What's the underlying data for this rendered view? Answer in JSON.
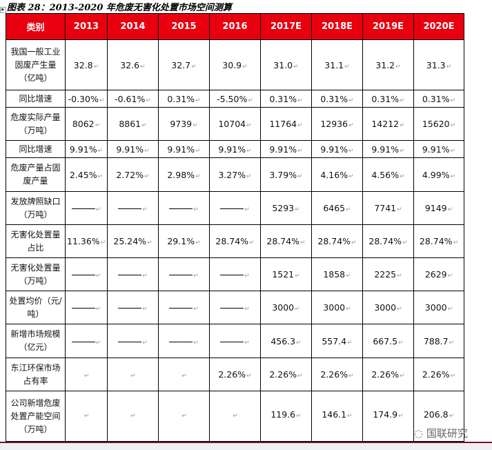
{
  "title": "图表 28：2013-2020 年危废无害化处置市场空间测算",
  "header": [
    "类别",
    "2013",
    "2014",
    "2015",
    "2016",
    "2017E",
    "2018E",
    "2019E",
    "2020E"
  ],
  "rows": [
    {
      "label": "我国一般工业固废产生量（亿吨）",
      "values": [
        "32.8",
        "32.6",
        "32.7",
        "30.9",
        "31.0",
        "31.1",
        "31.2",
        "31.3"
      ]
    },
    {
      "label": "同比增速",
      "values": [
        "-0.30%",
        "-0.61%",
        "0.31%",
        "-5.50%",
        "0.31%",
        "0.31%",
        "0.31%",
        "0.31%"
      ]
    },
    {
      "label": "危废实际产量（万吨）",
      "values": [
        "8062",
        "8861",
        "9739",
        "10704",
        "11764",
        "12936",
        "14212",
        "15620"
      ]
    },
    {
      "label": "同比增速",
      "values": [
        "9.91%",
        "9.91%",
        "9.91%",
        "9.91%",
        "9.91%",
        "9.91%",
        "9.91%",
        "9.91%"
      ]
    },
    {
      "label": "危废产量占固废产量",
      "values": [
        "2.45%",
        "2.72%",
        "2.98%",
        "3.27%",
        "3.79%",
        "4.16%",
        "4.56%",
        "4.99%"
      ]
    },
    {
      "label": "发放牌照缺口（万吨）",
      "values": [
        "—",
        "—",
        "—",
        "—",
        "5293",
        "6465",
        "7741",
        "9149"
      ]
    },
    {
      "label": "无害化处置量占比",
      "values": [
        "11.36%",
        "25.24%",
        "29.1%",
        "28.74%",
        "28.74%",
        "28.74%",
        "28.74%",
        "28.74%"
      ]
    },
    {
      "label": "无害化处置量（万吨）",
      "values": [
        "—",
        "—",
        "—",
        "—",
        "1521",
        "1858",
        "2225",
        "2629"
      ]
    },
    {
      "label": "处置均价（元/吨）",
      "values": [
        "—",
        "—",
        "—",
        "—",
        "3000",
        "3000",
        "3000",
        "3000"
      ]
    },
    {
      "label": "新增市场规模（亿元）",
      "values": [
        "—",
        "—",
        "—",
        "—",
        "456.3",
        "557.4",
        "667.5",
        "788.7"
      ]
    },
    {
      "label": "东江环保市场占有率",
      "values": [
        "",
        "",
        "",
        "2.26%",
        "2.26%",
        "2.26%",
        "2.26%",
        "2.26%"
      ]
    },
    {
      "label": "公司新增危废处置产能空间（万吨）",
      "values": [
        "",
        "",
        "",
        "",
        "119.6",
        "146.1",
        "174.9",
        "206.8"
      ]
    }
  ],
  "watermark": "国联研究"
}
